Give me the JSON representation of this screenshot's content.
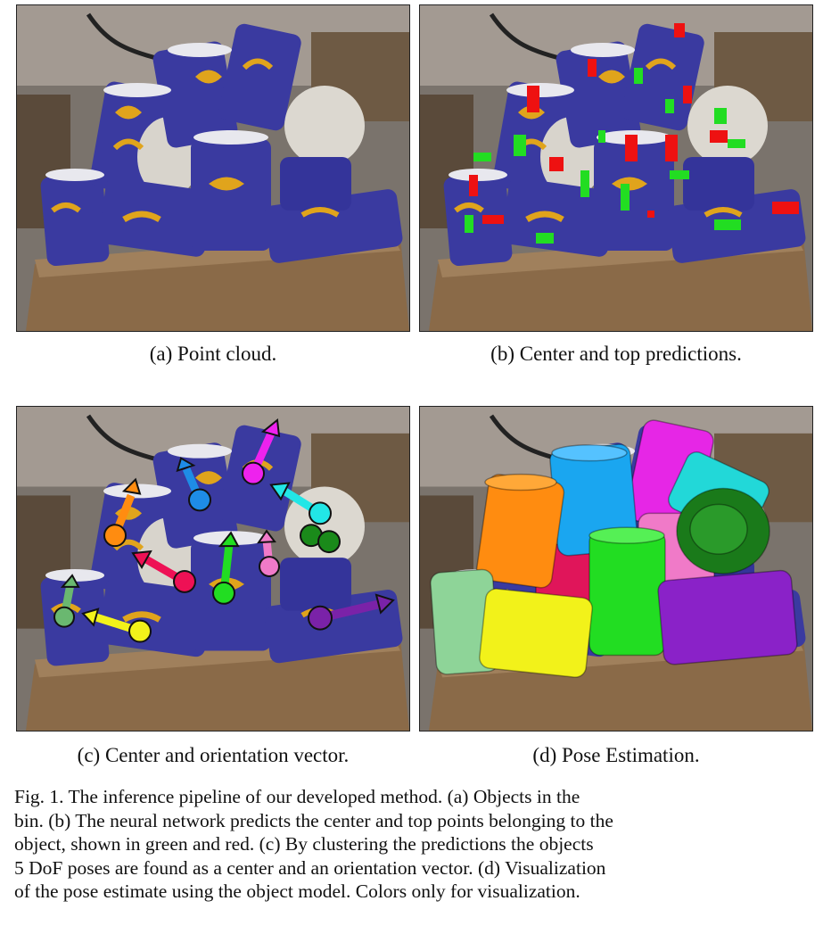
{
  "figure": {
    "panels": [
      {
        "id": "a",
        "caption": "(a) Point cloud."
      },
      {
        "id": "b",
        "caption": "(b) Center and top predictions."
      },
      {
        "id": "c",
        "caption": "(c) Center and orientation vector."
      },
      {
        "id": "d",
        "caption": "(d) Pose Estimation."
      }
    ],
    "caption_lines": [
      "Fig. 1.  The inference pipeline of our developed method. (a) Objects in the",
      "bin. (b) The neural network predicts the center and top points belonging to the",
      "object, shown in green and red. (c) By clustering the predictions the objects",
      "5 DoF poses are found as a center and an orientation vector. (d) Visualization",
      "of the pose estimate using the object model. Colors only for visualization."
    ]
  },
  "colors": {
    "center_points": "#22dd22",
    "top_points": "#ee1111",
    "cup_body": "#3a3aa0",
    "cup_logo": "#e0a41c",
    "bin": "#8a6a48"
  }
}
